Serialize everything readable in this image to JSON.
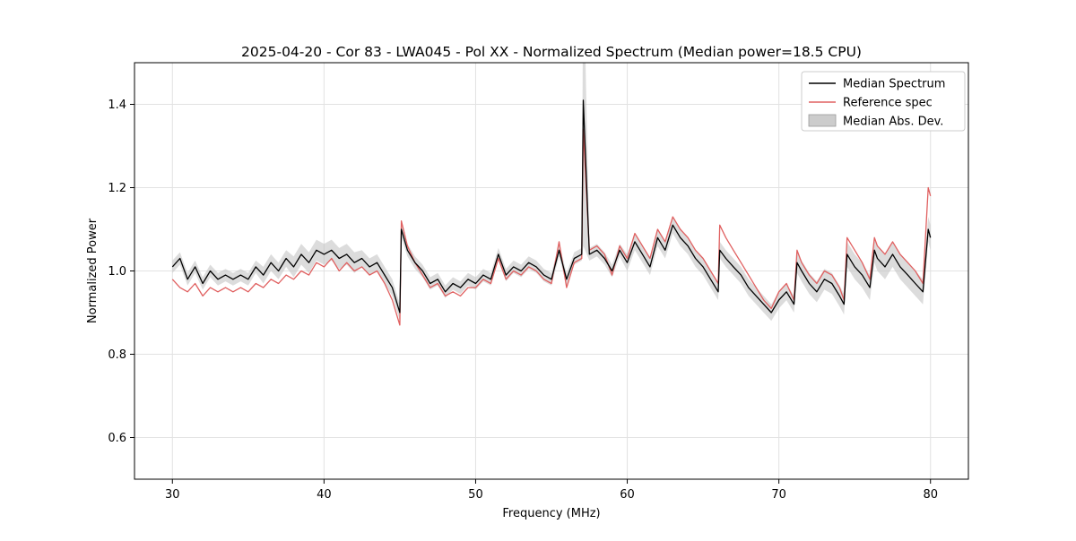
{
  "chart_data": {
    "type": "line",
    "title": "2025-04-20 - Cor 83 - LWA045 - Pol XX - Normalized Spectrum (Median power=18.5 CPU)",
    "xlabel": "Frequency (MHz)",
    "ylabel": "Normalized Power",
    "xlim": [
      27.5,
      82.5
    ],
    "ylim": [
      0.5,
      1.5
    ],
    "xticks": [
      30,
      40,
      50,
      60,
      70,
      80
    ],
    "yticks": [
      0.6,
      0.8,
      1.0,
      1.2,
      1.4
    ],
    "grid": true,
    "legend_position": "upper right",
    "x": [
      30,
      30.5,
      31,
      31.5,
      32,
      32.5,
      33,
      33.5,
      34,
      34.5,
      35,
      35.5,
      36,
      36.5,
      37,
      37.5,
      38,
      38.5,
      39,
      39.5,
      40,
      40.5,
      41,
      41.5,
      42,
      42.5,
      43,
      43.5,
      44,
      44.5,
      45,
      45.1,
      45.5,
      46,
      46.5,
      47,
      47.5,
      48,
      48.5,
      49,
      49.5,
      50,
      50.5,
      51,
      51.5,
      52,
      52.5,
      53,
      53.5,
      54,
      54.5,
      55,
      55.5,
      56,
      56.5,
      57,
      57.1,
      57.5,
      58,
      58.5,
      59,
      59.5,
      60,
      60.5,
      61,
      61.5,
      62,
      62.5,
      63,
      63.5,
      64,
      64.5,
      65,
      65.5,
      66,
      66.1,
      66.5,
      67,
      67.5,
      68,
      68.5,
      69,
      69.5,
      70,
      70.5,
      71,
      71.2,
      71.5,
      72,
      72.5,
      73,
      73.5,
      74,
      74.3,
      74.5,
      75,
      75.5,
      76,
      76.3,
      76.5,
      77,
      77.5,
      78,
      78.5,
      79,
      79.5,
      79.85,
      80
    ],
    "series": [
      {
        "name": "Median Spectrum",
        "color": "#000000",
        "line_width": 1.3,
        "values": [
          1.01,
          1.03,
          0.98,
          1.01,
          0.97,
          1.0,
          0.98,
          0.99,
          0.98,
          0.99,
          0.98,
          1.01,
          0.99,
          1.02,
          1.0,
          1.03,
          1.01,
          1.04,
          1.02,
          1.05,
          1.04,
          1.05,
          1.03,
          1.04,
          1.02,
          1.03,
          1.01,
          1.02,
          0.99,
          0.96,
          0.9,
          1.1,
          1.05,
          1.02,
          1.0,
          0.97,
          0.98,
          0.95,
          0.97,
          0.96,
          0.98,
          0.97,
          0.99,
          0.98,
          1.04,
          0.99,
          1.01,
          1.0,
          1.02,
          1.01,
          0.99,
          0.98,
          1.05,
          0.98,
          1.03,
          1.04,
          1.41,
          1.04,
          1.05,
          1.03,
          1.0,
          1.05,
          1.02,
          1.07,
          1.04,
          1.01,
          1.08,
          1.05,
          1.11,
          1.08,
          1.06,
          1.03,
          1.01,
          0.98,
          0.95,
          1.05,
          1.03,
          1.01,
          0.99,
          0.96,
          0.94,
          0.92,
          0.9,
          0.93,
          0.95,
          0.92,
          1.02,
          1.0,
          0.97,
          0.95,
          0.98,
          0.97,
          0.94,
          0.92,
          1.04,
          1.01,
          0.99,
          0.96,
          1.05,
          1.03,
          1.01,
          1.04,
          1.01,
          0.99,
          0.97,
          0.95,
          1.1,
          1.08
        ]
      },
      {
        "name": "Reference spec",
        "color": "#e06060",
        "line_width": 1.3,
        "values": [
          0.98,
          0.96,
          0.95,
          0.97,
          0.94,
          0.96,
          0.95,
          0.96,
          0.95,
          0.96,
          0.95,
          0.97,
          0.96,
          0.98,
          0.97,
          0.99,
          0.98,
          1.0,
          0.99,
          1.02,
          1.01,
          1.03,
          1.0,
          1.02,
          1.0,
          1.01,
          0.99,
          1.0,
          0.97,
          0.93,
          0.87,
          1.12,
          1.06,
          1.02,
          0.99,
          0.96,
          0.97,
          0.94,
          0.95,
          0.94,
          0.96,
          0.96,
          0.98,
          0.97,
          1.03,
          0.98,
          1.0,
          0.99,
          1.01,
          1.0,
          0.98,
          0.97,
          1.07,
          0.96,
          1.02,
          1.03,
          1.34,
          1.05,
          1.06,
          1.04,
          0.99,
          1.06,
          1.03,
          1.09,
          1.06,
          1.03,
          1.1,
          1.07,
          1.13,
          1.1,
          1.08,
          1.05,
          1.03,
          1.0,
          0.97,
          1.11,
          1.08,
          1.05,
          1.02,
          0.99,
          0.96,
          0.93,
          0.91,
          0.95,
          0.97,
          0.93,
          1.05,
          1.02,
          0.99,
          0.97,
          1.0,
          0.99,
          0.96,
          0.93,
          1.08,
          1.05,
          1.02,
          0.98,
          1.08,
          1.06,
          1.04,
          1.07,
          1.04,
          1.02,
          1.0,
          0.97,
          1.2,
          1.18
        ]
      }
    ],
    "band": {
      "name": "Median Abs. Dev.",
      "color": "#bfbfbf",
      "around": "Median Spectrum",
      "half_width": [
        0.015,
        0.015,
        0.015,
        0.015,
        0.015,
        0.015,
        0.015,
        0.015,
        0.015,
        0.015,
        0.015,
        0.015,
        0.02,
        0.02,
        0.02,
        0.02,
        0.025,
        0.025,
        0.025,
        0.025,
        0.025,
        0.025,
        0.025,
        0.025,
        0.025,
        0.02,
        0.02,
        0.02,
        0.02,
        0.02,
        0.02,
        0.02,
        0.015,
        0.015,
        0.015,
        0.015,
        0.015,
        0.015,
        0.015,
        0.015,
        0.015,
        0.015,
        0.015,
        0.015,
        0.015,
        0.015,
        0.015,
        0.015,
        0.015,
        0.015,
        0.015,
        0.015,
        0.015,
        0.015,
        0.015,
        0.015,
        0.35,
        0.015,
        0.015,
        0.015,
        0.015,
        0.015,
        0.02,
        0.02,
        0.02,
        0.02,
        0.02,
        0.02,
        0.02,
        0.02,
        0.02,
        0.02,
        0.02,
        0.02,
        0.02,
        0.02,
        0.02,
        0.02,
        0.02,
        0.02,
        0.02,
        0.02,
        0.02,
        0.02,
        0.02,
        0.02,
        0.025,
        0.025,
        0.025,
        0.025,
        0.025,
        0.025,
        0.025,
        0.025,
        0.03,
        0.03,
        0.03,
        0.03,
        0.03,
        0.03,
        0.03,
        0.03,
        0.03,
        0.03,
        0.03,
        0.03,
        0.03,
        0.03
      ]
    }
  }
}
